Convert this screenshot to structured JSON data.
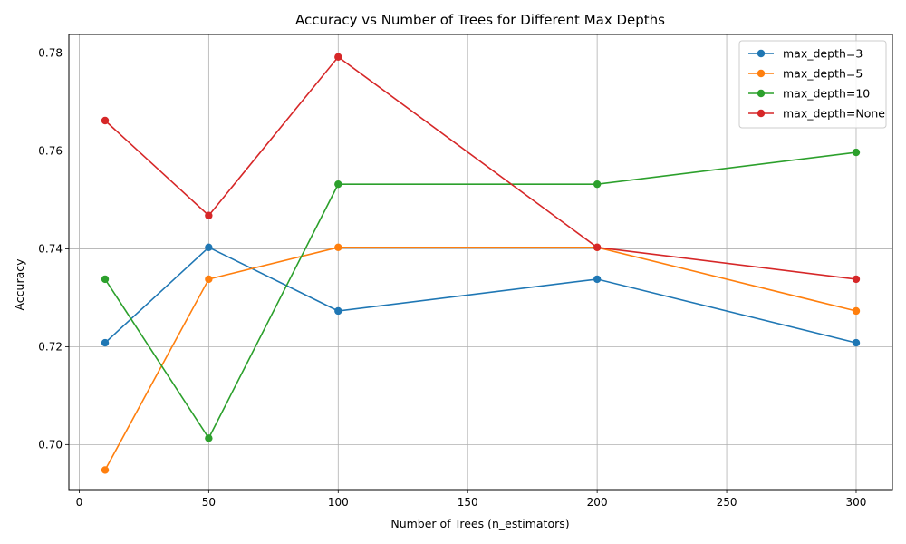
{
  "chart_data": {
    "type": "line",
    "title": "Accuracy vs Number of Trees for Different Max Depths",
    "xlabel": "Number of Trees (n_estimators)",
    "ylabel": "Accuracy",
    "x": [
      10,
      50,
      100,
      200,
      300
    ],
    "xlim": [
      -4,
      314
    ],
    "ylim": [
      0.6908,
      0.7838
    ],
    "xticks": [
      0,
      50,
      100,
      150,
      200,
      250,
      300
    ],
    "yticks": [
      0.7,
      0.72,
      0.74,
      0.76,
      0.78
    ],
    "xtick_labels": [
      "0",
      "50",
      "100",
      "150",
      "200",
      "250",
      "300"
    ],
    "ytick_labels": [
      "0.70",
      "0.72",
      "0.74",
      "0.76",
      "0.78"
    ],
    "grid": true,
    "legend_position": "top-right",
    "series": [
      {
        "name": "max_depth=3",
        "color": "#1f77b4",
        "values": [
          0.7208,
          0.7403,
          0.7273,
          0.7338,
          0.7208
        ]
      },
      {
        "name": "max_depth=5",
        "color": "#ff7f0e",
        "values": [
          0.6948,
          0.7338,
          0.7403,
          0.7403,
          0.7273
        ]
      },
      {
        "name": "max_depth=10",
        "color": "#2ca02c",
        "values": [
          0.7338,
          0.7013,
          0.7532,
          0.7532,
          0.7597
        ]
      },
      {
        "name": "max_depth=None",
        "color": "#d62728",
        "values": [
          0.7662,
          0.7468,
          0.7792,
          0.7403,
          0.7338
        ]
      }
    ]
  }
}
